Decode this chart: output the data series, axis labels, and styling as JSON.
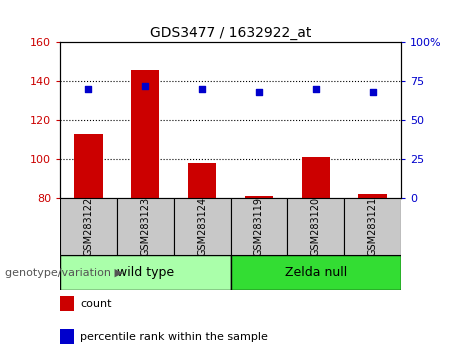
{
  "title": "GDS3477 / 1632922_at",
  "samples": [
    "GSM283122",
    "GSM283123",
    "GSM283124",
    "GSM283119",
    "GSM283120",
    "GSM283121"
  ],
  "counts": [
    113,
    146,
    98,
    81,
    101,
    82
  ],
  "percentiles": [
    70,
    72,
    70,
    68,
    70,
    68
  ],
  "ylim_left": [
    80,
    160
  ],
  "ylim_right": [
    0,
    100
  ],
  "yticks_left": [
    80,
    100,
    120,
    140,
    160
  ],
  "yticks_right": [
    0,
    25,
    50,
    75,
    100
  ],
  "ytick_labels_right": [
    "0",
    "25",
    "50",
    "75",
    "100%"
  ],
  "groups": [
    {
      "label": "wild type",
      "indices": [
        0,
        1,
        2
      ],
      "color": "#aaffaa"
    },
    {
      "label": "Zelda null",
      "indices": [
        3,
        4,
        5
      ],
      "color": "#33dd33"
    }
  ],
  "bar_color": "#cc0000",
  "dot_color": "#0000cc",
  "bar_bottom": 80,
  "sample_box_color": "#c8c8c8",
  "plot_bg": "#ffffff",
  "legend_count_label": "count",
  "legend_pct_label": "percentile rank within the sample",
  "xlabel_group": "genotype/variation"
}
